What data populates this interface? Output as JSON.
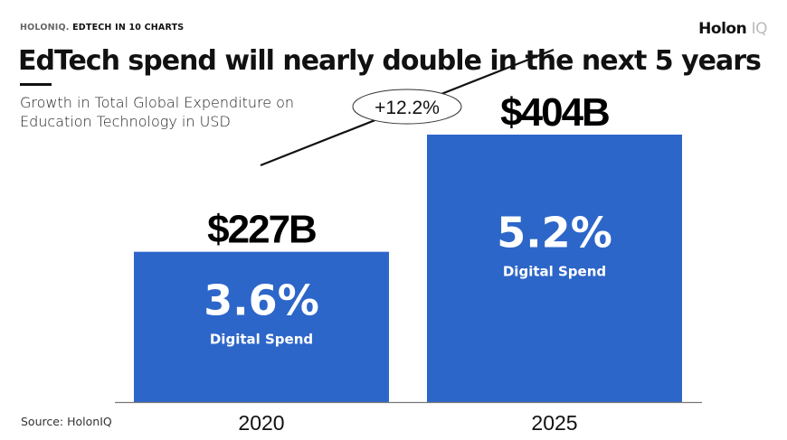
{
  "header": {
    "kicker_brand": "HOLONIQ.",
    "kicker_text": "EDTECH IN 10 CHARTS",
    "logo_main": "Holon",
    "logo_accent": "IQ"
  },
  "source": "Source: HolonIQ",
  "chart_data": {
    "type": "bar",
    "title": "EdTech spend will nearly double in the next 5 years",
    "subtitle_lines": [
      "Growth in Total Global Expenditure on",
      "Education Technology in USD"
    ],
    "categories": [
      "2020",
      "2025"
    ],
    "values": [
      227,
      404
    ],
    "value_labels": [
      "$227B",
      "$404B"
    ],
    "inner_labels": [
      {
        "big": "3.6%",
        "small": "Digital Spend"
      },
      {
        "big": "5.2%",
        "small": "Digital Spend"
      }
    ],
    "annotation": "+12.2%",
    "bar_color": "#2d66c9",
    "grid": false
  }
}
